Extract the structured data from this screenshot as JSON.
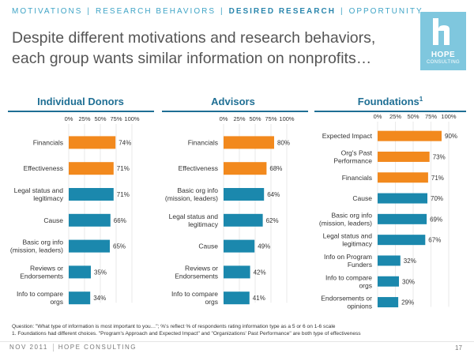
{
  "nav": {
    "items": [
      "MOTIVATIONS",
      "RESEARCH BEHAVIORS",
      "DESIRED RESEARCH",
      "OPPORTUNITY"
    ],
    "active_index": 2
  },
  "headline": "Despite different motivations and research behaviors, each group wants similar information on nonprofits…",
  "logo": {
    "title": "HOPE",
    "subtitle": "CONSULTING",
    "color": "#7fc7de"
  },
  "colors": {
    "orange": "#f2891d",
    "teal": "#1b88ad",
    "heading": "#1f6f94",
    "grid": "#dcdcdc"
  },
  "chart_data": [
    {
      "type": "bar",
      "orientation": "horizontal",
      "title": "Individual Donors",
      "xlim": [
        0,
        100
      ],
      "tick_labels": [
        "0%",
        "25%",
        "50%",
        "75%",
        "100%"
      ],
      "categories": [
        "Financials",
        "Effectiveness",
        "Legal status and legitimacy",
        "Cause",
        "Basic org info (mission, leaders)",
        "Reviews or Endorsements",
        "Info to compare orgs"
      ],
      "values": [
        74,
        71,
        71,
        66,
        65,
        35,
        34
      ],
      "value_labels": [
        "74%",
        "71%",
        "71%",
        "66%",
        "65%",
        "35%",
        "34%"
      ],
      "highlight": [
        true,
        true,
        false,
        false,
        false,
        false,
        false
      ]
    },
    {
      "type": "bar",
      "orientation": "horizontal",
      "title": "Advisors",
      "xlim": [
        0,
        100
      ],
      "tick_labels": [
        "0%",
        "25%",
        "50%",
        "75%",
        "100%"
      ],
      "categories": [
        "Financials",
        "Effectiveness",
        "Basic org info (mission, leaders)",
        "Legal status and legitimacy",
        "Cause",
        "Reviews or Endorsements",
        "Info to compare orgs"
      ],
      "values": [
        80,
        68,
        64,
        62,
        49,
        42,
        41
      ],
      "value_labels": [
        "80%",
        "68%",
        "64%",
        "62%",
        "49%",
        "42%",
        "41%"
      ],
      "highlight": [
        true,
        true,
        false,
        false,
        false,
        false,
        false
      ]
    },
    {
      "type": "bar",
      "orientation": "horizontal",
      "title": "Foundations",
      "title_sup": "1",
      "xlim": [
        0,
        100
      ],
      "tick_labels": [
        "0%",
        "25%",
        "50%",
        "75%",
        "100%"
      ],
      "categories": [
        "Expected Impact",
        "Org's Past Performance",
        "Financials",
        "Cause",
        "Basic org info (mission, leaders)",
        "Legal status and legitimacy",
        "Info on Program Funders",
        "Info to compare orgs",
        "Endorsements or opinions"
      ],
      "values": [
        90,
        73,
        71,
        70,
        69,
        67,
        32,
        30,
        29
      ],
      "value_labels": [
        "90%",
        "73%",
        "71%",
        "70%",
        "69%",
        "67%",
        "32%",
        "30%",
        "29%"
      ],
      "highlight": [
        true,
        true,
        true,
        false,
        false,
        false,
        false,
        false,
        false
      ]
    }
  ],
  "footnote_question": "Question: \"What type of information is most important to you…\"; %'s reflect % of respondents rating information type as a 5 or 6 on 1-6 scale",
  "footnote_1": "1. Foundations had different choices. \"Program's Approach and Expected Impact\" and \"Organizations' Past Performance\" are both type of effectiveness",
  "footer": {
    "date": "NOV 2011",
    "company": "HOPE CONSULTING",
    "page": "17"
  }
}
